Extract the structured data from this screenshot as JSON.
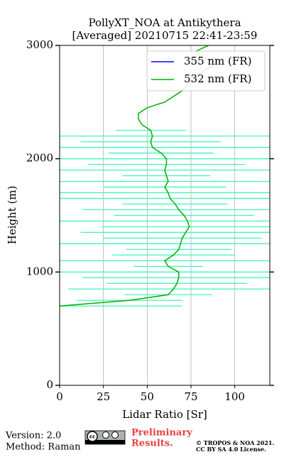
{
  "chart_data": {
    "type": "profile",
    "title": "PollyXT_NOA at Antikythera",
    "subtitle": "[Averaged] 20210715 22:41-23:59",
    "xlabel": "Lidar Ratio [Sr]",
    "ylabel": "Height (m)",
    "xlim": [
      0,
      120
    ],
    "xticks": [
      0,
      25,
      50,
      75,
      100
    ],
    "ylim": [
      0,
      3000
    ],
    "yticks": [
      0,
      1000,
      2000,
      3000
    ],
    "grid": true,
    "legend": "upper right",
    "y": [
      700,
      750,
      800,
      850,
      900,
      950,
      1000,
      1050,
      1100,
      1150,
      1200,
      1250,
      1300,
      1350,
      1400,
      1450,
      1500,
      1550,
      1600,
      1650,
      1700,
      1750,
      1800,
      1850,
      1900,
      1950,
      2000,
      2050,
      2100,
      2150,
      2200,
      2250,
      2300,
      2350,
      2400,
      2450,
      2500,
      2550,
      2600,
      2650,
      2700,
      2750,
      2800,
      2850,
      2900,
      2950,
      3000
    ],
    "series": [
      {
        "name": "355 nm (FR)",
        "color": "#0000ff",
        "values": [
          null,
          null,
          null,
          null,
          null,
          null,
          null,
          null,
          null,
          null,
          null,
          null,
          null,
          null,
          null,
          null,
          null,
          null,
          null,
          null,
          null,
          null,
          null,
          null,
          null,
          null,
          null,
          null,
          null,
          null,
          null,
          null,
          null,
          null,
          null,
          null,
          null,
          null,
          null,
          null,
          null,
          null,
          null,
          null,
          null,
          null,
          null
        ]
      },
      {
        "name": "532 nm (FR)",
        "color": "#00b000",
        "error_color": "#40f5c0",
        "values": [
          0,
          40,
          62,
          65,
          67,
          68,
          68,
          62,
          60,
          65,
          68,
          69,
          70,
          72,
          74,
          73,
          71,
          68,
          66,
          63,
          62,
          60,
          62,
          61,
          60,
          61,
          61,
          58,
          53,
          52,
          53,
          52,
          47,
          45,
          45,
          50,
          60,
          65,
          70,
          73,
          77,
          80,
          85,
          90,
          80,
          78,
          85
        ],
        "errors": [
          70,
          30,
          25,
          60,
          40,
          55,
          70,
          20,
          65,
          35,
          30,
          80,
          45,
          60,
          50,
          75,
          40,
          55,
          30,
          70,
          65,
          35,
          80,
          25,
          60,
          45,
          70,
          30,
          75,
          40,
          70,
          20,
          0,
          0,
          0,
          0,
          0,
          0,
          0,
          0,
          0,
          0,
          0,
          0,
          0,
          0,
          0
        ]
      }
    ],
    "footer": {
      "version": "Version: 2.0",
      "method": "Method: Raman",
      "prelim1": "Preliminary",
      "prelim2": "Results.",
      "copy1": "© TROPOS & NOA 2021.",
      "copy2": "CC BY SA 4.0 License."
    }
  }
}
